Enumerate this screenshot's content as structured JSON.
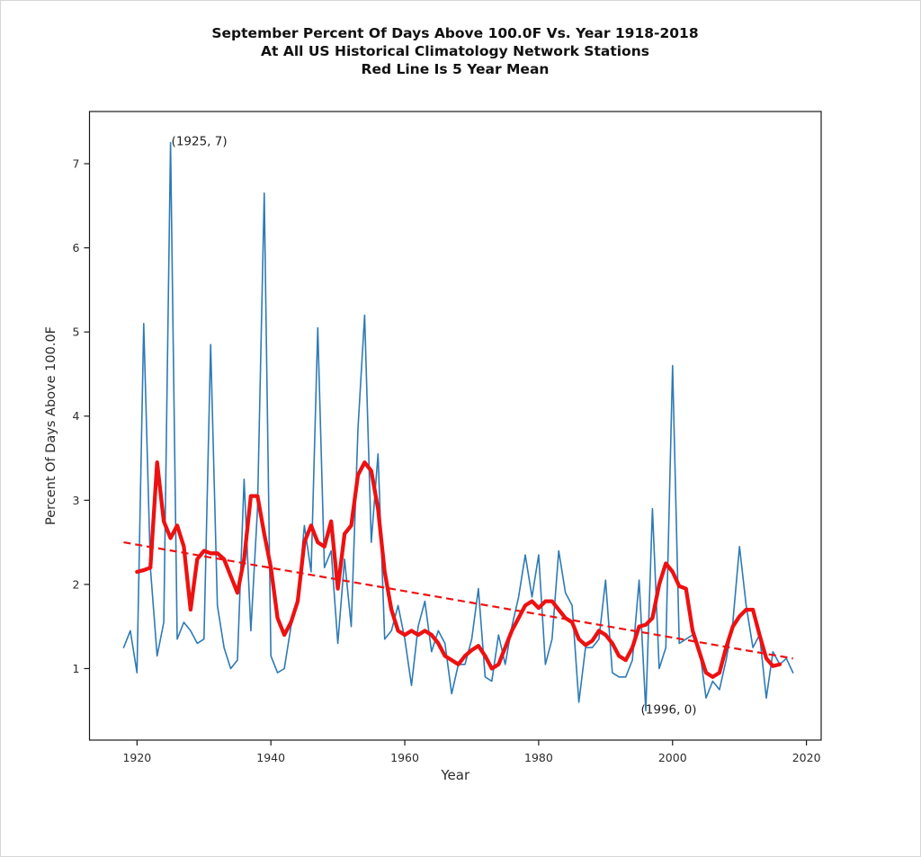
{
  "header": {
    "title_line1": "September Percent Of Days Above 100.0F Vs. Year 1918-2018",
    "title_line2": "At All US Historical Climatology Network Stations",
    "title_line3": "Red Line Is 5 Year Mean"
  },
  "chart_data": {
    "type": "line",
    "title": "September Percent Of Days Above 100.0F Vs. Year 1918-2018 At All US Historical Climatology Network Stations Red Line Is 5 Year Mean",
    "xlabel": "Year",
    "ylabel": "Percent Of Days Above 100.0F",
    "xlim": [
      1912.9,
      2022.2
    ],
    "ylim": [
      0.15,
      7.62
    ],
    "x_ticks": [
      1920,
      1940,
      1960,
      1980,
      2000,
      2020
    ],
    "y_ticks": [
      1,
      2,
      3,
      4,
      5,
      6,
      7
    ],
    "grid": false,
    "legend": "none",
    "colors": {
      "annual_line": "#2e7ab5",
      "mean_line": "#ee1111",
      "trend_line": "#ee1111",
      "axis": "#1a1a1a",
      "tick_text": "#2b2b2b",
      "annotation_text": "#1f1f1f"
    },
    "series": [
      {
        "name": "annual_percent",
        "start_year": 1918,
        "values": [
          1.25,
          1.45,
          0.95,
          5.1,
          2.2,
          1.15,
          1.55,
          7.25,
          1.35,
          1.55,
          1.45,
          1.3,
          1.35,
          4.85,
          1.75,
          1.25,
          1.0,
          1.1,
          3.25,
          1.45,
          2.9,
          6.65,
          1.15,
          0.95,
          1.0,
          1.5,
          1.8,
          2.7,
          2.15,
          5.05,
          2.2,
          2.4,
          1.3,
          2.3,
          1.5,
          3.85,
          5.2,
          2.5,
          3.55,
          1.35,
          1.45,
          1.75,
          1.35,
          0.8,
          1.5,
          1.8,
          1.2,
          1.45,
          1.3,
          0.7,
          1.05,
          1.05,
          1.35,
          1.95,
          0.9,
          0.85,
          1.4,
          1.05,
          1.5,
          1.85,
          2.35,
          1.85,
          2.35,
          1.05,
          1.35,
          2.4,
          1.9,
          1.75,
          0.6,
          1.25,
          1.25,
          1.35,
          2.05,
          0.95,
          0.9,
          0.9,
          1.1,
          2.05,
          0.5,
          2.9,
          1.0,
          1.25,
          4.6,
          1.3,
          1.35,
          1.4,
          1.25,
          0.65,
          0.85,
          0.75,
          1.1,
          1.55,
          2.45,
          1.75,
          1.25,
          1.4,
          0.65,
          1.2,
          1.05,
          1.12,
          0.95
        ]
      },
      {
        "name": "five_year_mean",
        "start_year": 1920,
        "values": [
          2.15,
          2.17,
          2.2,
          3.45,
          2.75,
          2.55,
          2.7,
          2.45,
          1.7,
          2.3,
          2.4,
          2.37,
          2.37,
          2.3,
          2.1,
          1.9,
          2.3,
          3.05,
          3.05,
          2.6,
          2.2,
          1.6,
          1.4,
          1.55,
          1.8,
          2.5,
          2.7,
          2.5,
          2.45,
          2.75,
          1.95,
          2.6,
          2.7,
          3.3,
          3.45,
          3.35,
          2.9,
          2.15,
          1.7,
          1.45,
          1.4,
          1.45,
          1.4,
          1.45,
          1.4,
          1.3,
          1.15,
          1.1,
          1.05,
          1.15,
          1.22,
          1.27,
          1.15,
          1.0,
          1.05,
          1.25,
          1.45,
          1.6,
          1.75,
          1.8,
          1.72,
          1.8,
          1.8,
          1.7,
          1.6,
          1.55,
          1.35,
          1.28,
          1.33,
          1.45,
          1.4,
          1.3,
          1.15,
          1.1,
          1.25,
          1.5,
          1.52,
          1.6,
          2.0,
          2.25,
          2.15,
          1.98,
          1.95,
          1.45,
          1.2,
          0.95,
          0.9,
          0.95,
          1.25,
          1.5,
          1.62,
          1.7,
          1.7,
          1.4,
          1.12,
          1.03,
          1.05
        ]
      }
    ],
    "trend_line": {
      "points": [
        [
          1918,
          2.5
        ],
        [
          2018,
          1.12
        ]
      ],
      "dash": [
        8,
        5
      ]
    },
    "annotations": [
      {
        "text": "(1925, 7)",
        "year": 1925,
        "value": 7.25
      },
      {
        "text": "(1996, 0)",
        "year": 1996,
        "value": 0.5
      }
    ]
  }
}
